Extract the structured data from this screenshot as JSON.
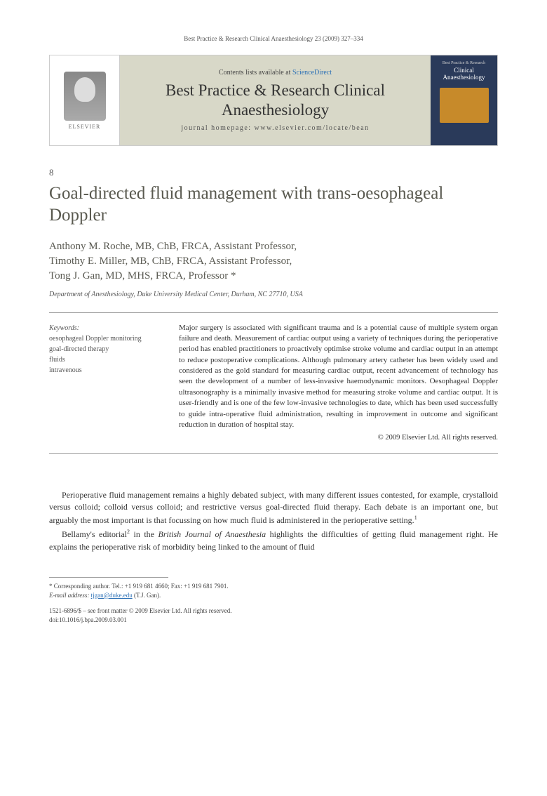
{
  "header": {
    "citation": "Best Practice & Research Clinical Anaesthesiology 23 (2009) 327–334"
  },
  "banner": {
    "publisher_label": "ELSEVIER",
    "contents_prefix": "Contents lists available at ",
    "contents_link": "ScienceDirect",
    "journal_name": "Best Practice & Research Clinical Anaesthesiology",
    "homepage_prefix": "journal homepage: ",
    "homepage_url": "www.elsevier.com/locate/bean",
    "cover_sub": "Best Practice & Research",
    "cover_title": "Clinical Anaesthesiology"
  },
  "article": {
    "number": "8",
    "title": "Goal-directed fluid management with trans-oesophageal Doppler",
    "authors_line1": "Anthony M. Roche, MB, ChB, FRCA, Assistant Professor,",
    "authors_line2": "Timothy E. Miller, MB, ChB, FRCA, Assistant Professor,",
    "authors_line3": "Tong J. Gan, MD, MHS, FRCA, Professor",
    "corr_marker": "*",
    "affiliation": "Department of Anesthesiology, Duke University Medical Center, Durham, NC 27710, USA"
  },
  "keywords": {
    "heading": "Keywords:",
    "items": [
      "oesophageal Doppler monitoring",
      "goal-directed therapy",
      "fluids",
      "intravenous"
    ]
  },
  "abstract": {
    "text": "Major surgery is associated with significant trauma and is a potential cause of multiple system organ failure and death. Measurement of cardiac output using a variety of techniques during the perioperative period has enabled practitioners to proactively optimise stroke volume and cardiac output in an attempt to reduce postoperative complications. Although pulmonary artery catheter has been widely used and considered as the gold standard for measuring cardiac output, recent advancement of technology has seen the development of a number of less-invasive haemodynamic monitors. Oesophageal Doppler ultrasonography is a minimally invasive method for measuring stroke volume and cardiac output. It is user-friendly and is one of the few low-invasive technologies to date, which has been used successfully to guide intra-operative fluid administration, resulting in improvement in outcome and significant reduction in duration of hospital stay.",
    "copyright": "© 2009 Elsevier Ltd. All rights reserved."
  },
  "body": {
    "para1": "Perioperative fluid management remains a highly debated subject, with many different issues contested, for example, crystalloid versus colloid; colloid versus colloid; and restrictive versus goal-directed fluid therapy. Each debate is an important one, but arguably the most important is that focussing on how much fluid is administered in the perioperative setting.",
    "ref1": "1",
    "para2a": "Bellamy's editorial",
    "ref2": "2",
    "para2b": " in the ",
    "para2_ital": "British Journal of Anaesthesia",
    "para2c": " highlights the difficulties of getting fluid management right. He explains the perioperative risk of morbidity being linked to the amount of fluid"
  },
  "footnote": {
    "corr": "* Corresponding author. Tel.: +1 919 681 4660; Fax: +1 919 681 7901.",
    "email_label": "E-mail address:",
    "email": "tjgan@duke.edu",
    "email_name": "(T.J. Gan)."
  },
  "bottom": {
    "issn_line": "1521-6896/$ – see front matter © 2009 Elsevier Ltd. All rights reserved.",
    "doi_line": "doi:10.1016/j.bpa.2009.03.001"
  },
  "colors": {
    "banner_bg": "#d8d8c8",
    "link": "#2a6fb5",
    "title_color": "#59594f",
    "cover_bg": "#2a3a5a",
    "cover_accent": "#c78a2a"
  }
}
